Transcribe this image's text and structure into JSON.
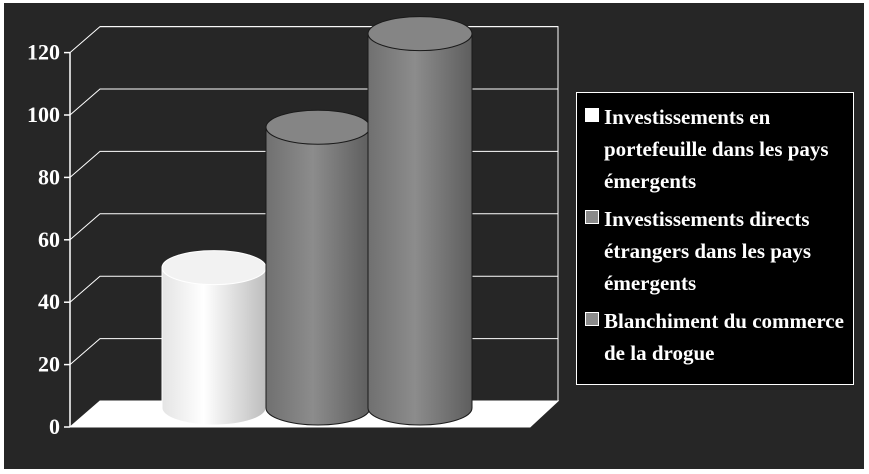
{
  "chart_data": {
    "type": "bar",
    "style": "3d-cylinder",
    "categories": [
      "Investissements en portefeuille dans les pays émergents",
      "Investissements directs étrangers dans les pays émergents",
      "Blanchiment du commerce de la drogue"
    ],
    "values": [
      45,
      90,
      120
    ],
    "series": [
      {
        "name": "Investissements en portefeuille dans les pays émergents",
        "value": 45,
        "color": "#ffffff"
      },
      {
        "name": "Investissements directs étrangers dans les pays émergents",
        "value": 90,
        "color": "#8a8a8a"
      },
      {
        "name": "Blanchiment du commerce de la drogue",
        "value": 120,
        "color": "#8a8a8a"
      }
    ],
    "y_ticks": [
      "0",
      "20",
      "40",
      "60",
      "80",
      "100",
      "120"
    ],
    "ylim": [
      0,
      120
    ],
    "grid": true,
    "legend_position": "right",
    "background_color": "#262626"
  },
  "legend": {
    "items": [
      {
        "label": "Investissements en portefeuille dans les pays émergents",
        "color": "#ffffff"
      },
      {
        "label": "Investissements directs étrangers dans les pays émergents",
        "color": "#8a8a8a"
      },
      {
        "label": "Blanchiment du commerce de la drogue",
        "color": "#8a8a8a"
      }
    ]
  }
}
